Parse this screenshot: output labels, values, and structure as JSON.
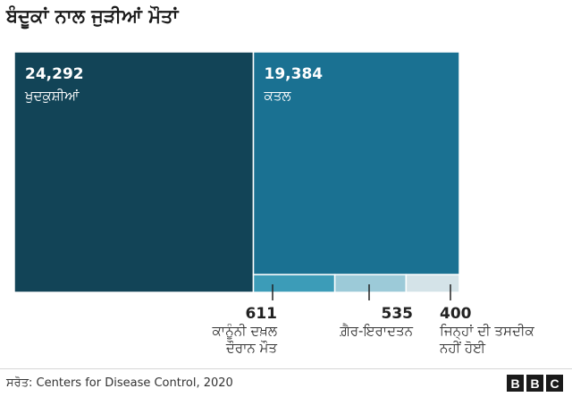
{
  "title": "ਬੰਦੂਕਾਂ ਨਾਲ ਜੁੜੀਆਂ ਮੌਤਾਂ",
  "chart_data": {
    "type": "treemap",
    "series": [
      {
        "name": "ਖੁਦਕੁਸ਼ੀਆਂ",
        "value": 24292,
        "display": "24,292",
        "color": "#124457"
      },
      {
        "name": "ਕਤਲ",
        "value": 19384,
        "display": "19,384",
        "color": "#1a7192"
      },
      {
        "name": "ਕਾਨੂੰਨੀ ਦਖ਼ਲ ਦੌਰਾਨ ਮੌਤ",
        "value": 611,
        "display": "611",
        "color": "#3c9cb8"
      },
      {
        "name": "ਗ਼ੈਰ-ਇਰਾਦਤਨ",
        "value": 535,
        "display": "535",
        "color": "#9ccad8"
      },
      {
        "name": "ਜਿਨ੍ਹਾਂ ਦੀ ਤਸਦੀਕ ਨਹੀਂ ਹੋਈ",
        "value": 400,
        "display": "400",
        "color": "#d4e3e8"
      }
    ]
  },
  "callouts": [
    {
      "value": "611",
      "line1": "ਕਾਨੂੰਨੀ ਦਖ਼ਲ",
      "line2": "ਦੌਰਾਨ ਮੌਤ"
    },
    {
      "value": "535",
      "line1": "ਗ਼ੈਰ-ਇਰਾਦਤਨ",
      "line2": ""
    },
    {
      "value": "400",
      "line1": "ਜਿਨ੍ਹਾਂ ਦੀ ਤਸਦੀਕ",
      "line2": "ਨਹੀਂ ਹੋਈ"
    }
  ],
  "source": "ਸਰੋਤ: Centers for Disease Control, 2020",
  "logo": [
    "B",
    "B",
    "C"
  ]
}
